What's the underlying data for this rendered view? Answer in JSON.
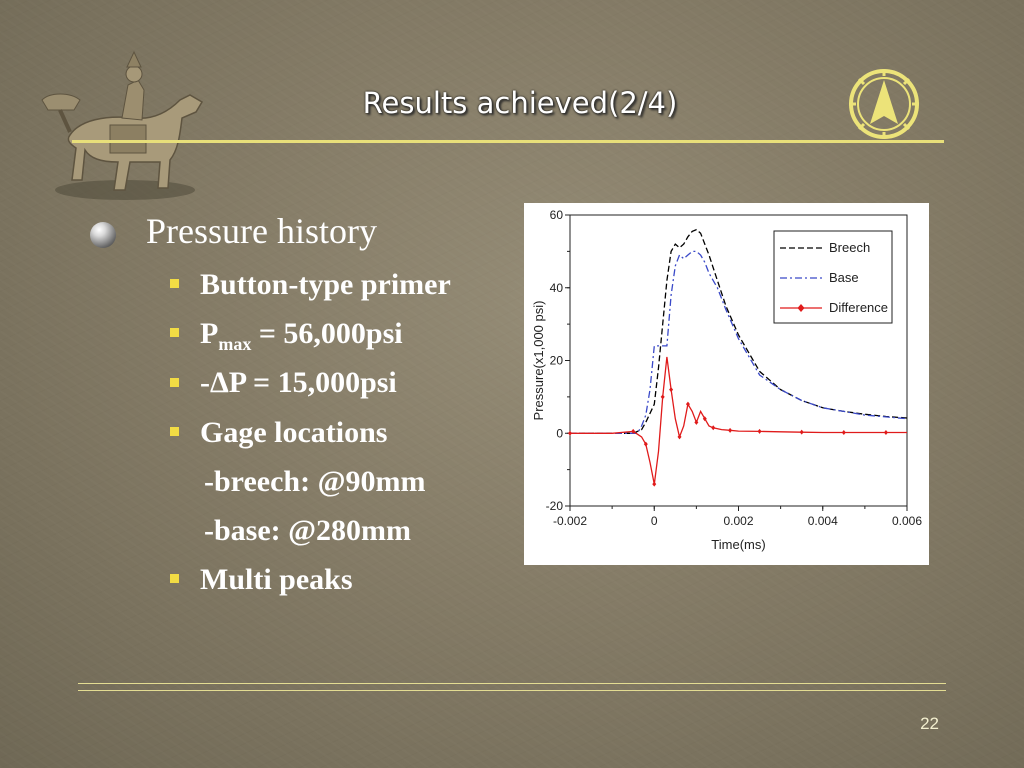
{
  "slide": {
    "title": "Results achieved(2/4)",
    "page_number": "22"
  },
  "content": {
    "heading": "Pressure history",
    "items": [
      {
        "text": "Button-type primer"
      },
      {
        "text_pre": "P",
        "text_sub": "max",
        "text_post": " = 56,000psi"
      },
      {
        "text": "-ΔP  = 15,000psi"
      },
      {
        "text": "Gage locations"
      },
      {
        "text": "-breech: @90mm"
      },
      {
        "text": "-base: @280mm"
      },
      {
        "text": "Multi peaks"
      }
    ]
  },
  "chart_data": {
    "type": "line",
    "xlabel": "Time(ms)",
    "ylabel": "Pressure(x1,000 psi)",
    "xlim": [
      -0.002,
      0.006
    ],
    "ylim": [
      -20,
      60
    ],
    "x_ticks": [
      "-0.002",
      "0",
      "0.002",
      "0.004",
      "0.006"
    ],
    "y_ticks": [
      "-20",
      "0",
      "20",
      "40",
      "60"
    ],
    "legend_position": "top-right",
    "series": [
      {
        "name": "Breech",
        "color": "#000000",
        "style": "dashed",
        "x": [
          -0.002,
          -0.0005,
          -0.0003,
          -0.0002,
          0,
          0.0001,
          0.0002,
          0.0003,
          0.0004,
          0.0005,
          0.0006,
          0.0007,
          0.0008,
          0.0009,
          0.001,
          0.0011,
          0.0012,
          0.0013,
          0.0015,
          0.0017,
          0.002,
          0.0025,
          0.003,
          0.0035,
          0.004,
          0.0045,
          0.005,
          0.0055,
          0.006
        ],
        "y": [
          0,
          0,
          1,
          3,
          8,
          18,
          30,
          42,
          50,
          52,
          51,
          52,
          54,
          55.5,
          56,
          55,
          52,
          49,
          42,
          35,
          27,
          17,
          12,
          9,
          7,
          6,
          5.2,
          4.6,
          4.2
        ]
      },
      {
        "name": "Base",
        "color": "#3a49c8",
        "style": "dash-dot",
        "x": [
          -0.002,
          -0.0004,
          -0.0003,
          -0.0002,
          -0.0001,
          0,
          0.0002,
          0.0003,
          0.0004,
          0.0005,
          0.0006,
          0.0007,
          0.0008,
          0.0009,
          0.001,
          0.0011,
          0.0012,
          0.0013,
          0.0015,
          0.0017,
          0.002,
          0.0025,
          0.003,
          0.0035,
          0.004,
          0.0045,
          0.005,
          0.0055,
          0.006
        ],
        "y": [
          0,
          0,
          2,
          5,
          12,
          24,
          24,
          24,
          38,
          46,
          49,
          48,
          49,
          50,
          50,
          49,
          47,
          44,
          40,
          34,
          26,
          16,
          12,
          9,
          7,
          6,
          5,
          4.5,
          4
        ]
      },
      {
        "name": "Difference",
        "color": "#e01b1b",
        "style": "solid-diamond",
        "x": [
          -0.002,
          -0.001,
          -0.0005,
          -0.0003,
          -0.0002,
          -0.0001,
          0,
          0.0001,
          0.0002,
          0.0003,
          0.0004,
          0.0005,
          0.0006,
          0.0007,
          0.0008,
          0.0009,
          0.001,
          0.0011,
          0.0012,
          0.0013,
          0.0014,
          0.0016,
          0.0018,
          0.002,
          0.0025,
          0.003,
          0.0035,
          0.004,
          0.0045,
          0.005,
          0.0055,
          0.006
        ],
        "y": [
          0,
          0,
          0.5,
          -1,
          -3,
          -8,
          -14,
          -5,
          10,
          21,
          12,
          4,
          -1,
          2,
          8,
          6,
          3,
          6,
          4,
          2,
          1.5,
          1,
          0.8,
          0.6,
          0.5,
          0.4,
          0.3,
          0.2,
          0.2,
          0.2,
          0.2,
          0.2
        ]
      }
    ]
  }
}
